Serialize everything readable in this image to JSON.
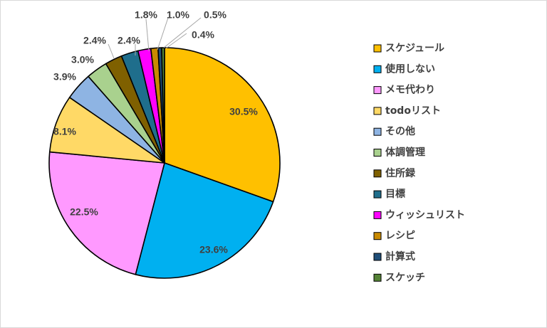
{
  "chart_data": {
    "type": "pie",
    "title": "",
    "legend_position": "right",
    "slices": [
      {
        "label": "スケジュール",
        "value": 30.5,
        "display": "30.5%",
        "color": "#FFC000"
      },
      {
        "label": "使用しない",
        "value": 23.6,
        "display": "23.6%",
        "color": "#00B0F0"
      },
      {
        "label": "メモ代わり",
        "value": 22.5,
        "display": "22.5%",
        "color": "#FF99FF"
      },
      {
        "label": "todoリスト",
        "value": 8.1,
        "display": "8.1%",
        "color": "#FFD966"
      },
      {
        "label": "その他",
        "value": 3.9,
        "display": "3.9%",
        "color": "#8EB4E3"
      },
      {
        "label": "体調管理",
        "value": 3.0,
        "display": "3.0%",
        "color": "#A9D18E"
      },
      {
        "label": "住所録",
        "value": 2.4,
        "display": "2.4%",
        "color": "#7F6000"
      },
      {
        "label": "目標",
        "value": 2.4,
        "display": "2.4%",
        "color": "#1F6E8C"
      },
      {
        "label": "ウィッシュリスト",
        "value": 1.8,
        "display": "1.8%",
        "color": "#FF00FF"
      },
      {
        "label": "レシピ",
        "value": 1.0,
        "display": "1.0%",
        "color": "#C98A00"
      },
      {
        "label": "計算式",
        "value": 0.5,
        "display": "0.5%",
        "color": "#1F4E79"
      },
      {
        "label": "スケッチ",
        "value": 0.4,
        "display": "0.4%",
        "color": "#548235"
      }
    ]
  }
}
